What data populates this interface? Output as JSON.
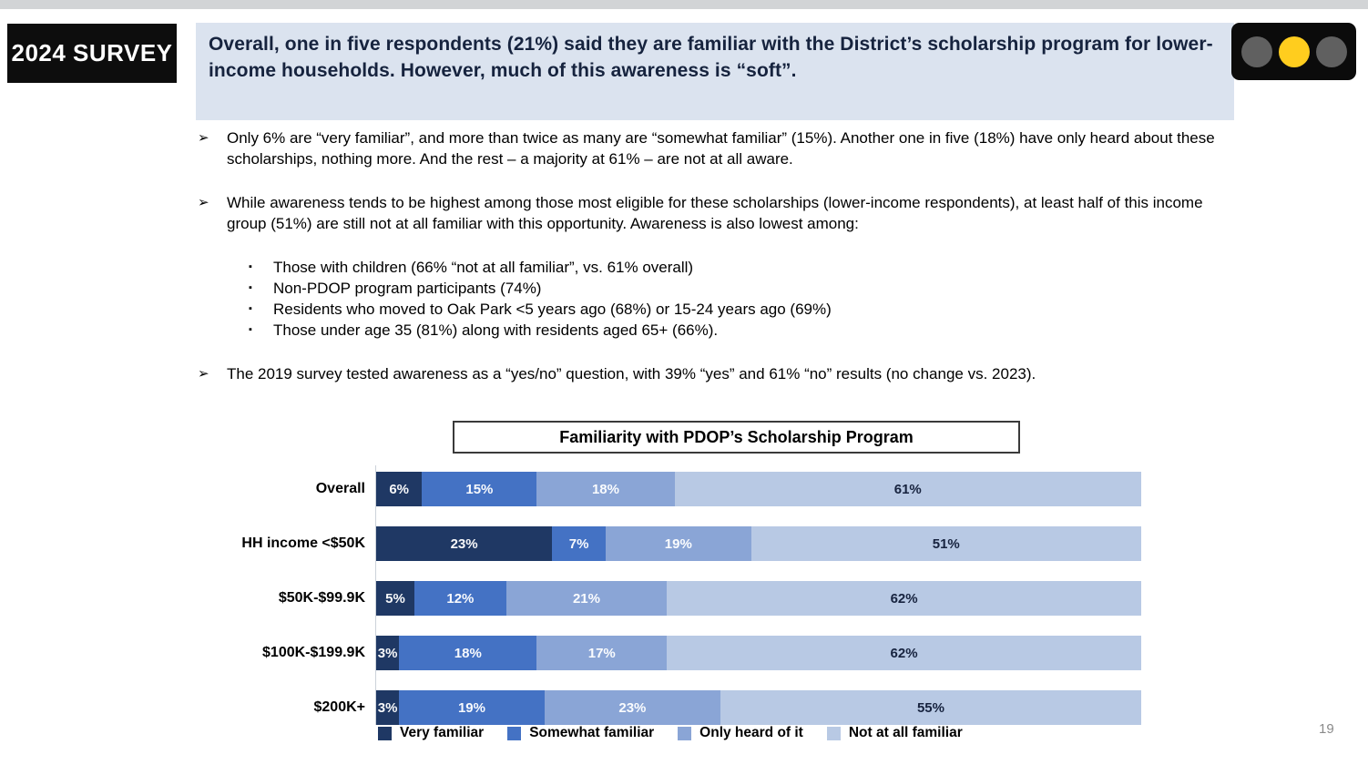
{
  "header": {
    "badge": "2024 SURVEY",
    "title": "Overall, one in five respondents (21%) said they are familiar with the District’s scholarship program for lower-income households.  However, much of this awareness is “soft”.",
    "traffic_light_colors": [
      "#606060",
      "#FFCD1E",
      "#606060"
    ]
  },
  "icons": {
    "bullet": "➢",
    "sub_bullet": "▪"
  },
  "bullets": {
    "b1": "Only 6% are “very familiar”, and more than twice as many are “somewhat familiar” (15%).  Another one in five (18%) have only heard about these scholarships, nothing more.  And the rest – a majority at 61% – are not at all aware.",
    "b2": "While awareness tends to be highest among those most eligible for these scholarships (lower-income respondents), at least half of this income group (51%) are still not at all familiar with this opportunity.  Awareness is also lowest among:",
    "b2_sub": [
      "Those with children (66% “not at all familiar”, vs. 61% overall)",
      "Non-PDOP program participants (74%)",
      "Residents who moved to Oak Park <5 years ago (68%) or 15-24 years ago (69%)",
      "Those under age 35 (81%) along with residents aged 65+ (66%)."
    ],
    "b3": "The 2019 survey tested awareness as a “yes/no” question, with 39% “yes” and 61% “no” results (no change vs. 2023)."
  },
  "chart_data": {
    "type": "bar",
    "stacked": true,
    "orientation": "horizontal",
    "title": "Familiarity with PDOP’s Scholarship Program",
    "categories": [
      "Overall",
      "HH income <$50K",
      "$50K-$99.9K",
      "$100K-$199.9K",
      "$200K+"
    ],
    "series": [
      {
        "name": "Very familiar",
        "color": "#1F3864",
        "values": [
          6,
          23,
          5,
          3,
          3
        ]
      },
      {
        "name": "Somewhat familiar",
        "color": "#4472C4",
        "values": [
          15,
          7,
          12,
          18,
          19
        ]
      },
      {
        "name": "Only heard of it",
        "color": "#8AA5D6",
        "values": [
          18,
          19,
          21,
          17,
          23
        ]
      },
      {
        "name": "Not at all familiar",
        "color": "#B8C9E4",
        "values": [
          61,
          51,
          62,
          62,
          55
        ]
      }
    ],
    "value_suffix": "%",
    "xlim": [
      0,
      100
    ],
    "legend_position": "bottom",
    "grid": false
  },
  "footer": {
    "page_number": "19"
  }
}
